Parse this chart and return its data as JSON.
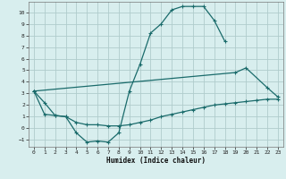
{
  "xlabel": "Humidex (Indice chaleur)",
  "bg_color": "#d8eeee",
  "grid_color": "#b0cccc",
  "line_color": "#1a6b6b",
  "xlim": [
    -0.5,
    23.5
  ],
  "ylim": [
    -1.6,
    10.9
  ],
  "xticks": [
    0,
    1,
    2,
    3,
    4,
    5,
    6,
    7,
    8,
    9,
    10,
    11,
    12,
    13,
    14,
    15,
    16,
    17,
    18,
    19,
    20,
    21,
    22,
    23
  ],
  "yticks": [
    -1,
    0,
    1,
    2,
    3,
    4,
    5,
    6,
    7,
    8,
    9,
    10
  ],
  "line1_x": [
    0,
    1,
    2,
    3,
    4,
    5,
    6,
    7,
    8,
    9,
    10,
    11,
    12,
    13,
    14,
    15,
    16,
    17,
    18
  ],
  "line1_y": [
    3.2,
    2.2,
    1.1,
    1.0,
    -0.4,
    -1.2,
    -1.1,
    -1.2,
    -0.4,
    3.2,
    5.5,
    8.2,
    9.0,
    10.2,
    10.5,
    10.5,
    10.5,
    9.3,
    7.5
  ],
  "line2_x": [
    0,
    19,
    20,
    22,
    23
  ],
  "line2_y": [
    3.2,
    4.8,
    5.2,
    3.5,
    2.7
  ],
  "line3_x": [
    0,
    1,
    2,
    3,
    4,
    5,
    6,
    7,
    8,
    9,
    10,
    11,
    12,
    13,
    14,
    15,
    16,
    17,
    18,
    19,
    20,
    21,
    22,
    23
  ],
  "line3_y": [
    3.2,
    1.2,
    1.1,
    1.0,
    0.5,
    0.3,
    0.3,
    0.2,
    0.2,
    0.3,
    0.5,
    0.7,
    1.0,
    1.2,
    1.4,
    1.6,
    1.8,
    2.0,
    2.1,
    2.2,
    2.3,
    2.4,
    2.5,
    2.5
  ]
}
